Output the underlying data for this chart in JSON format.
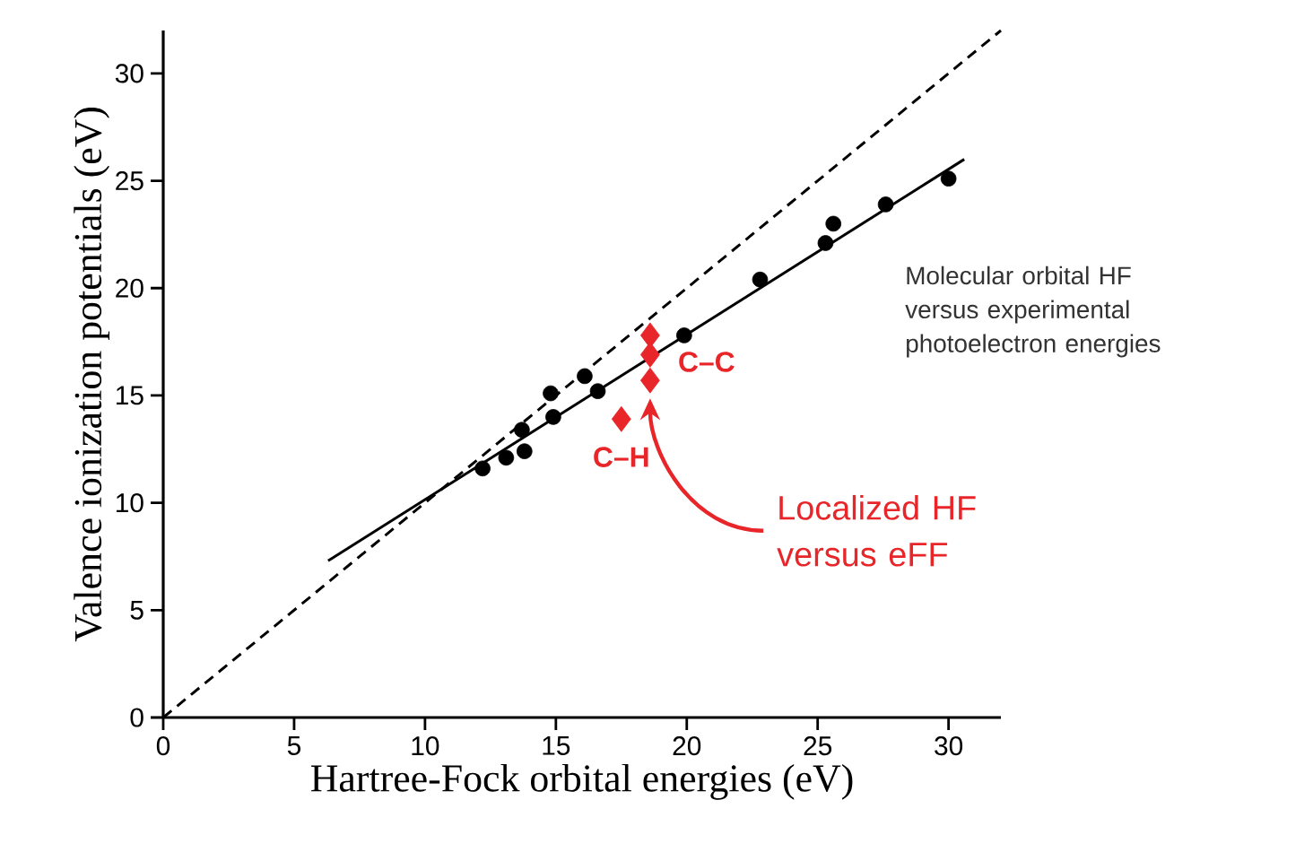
{
  "chart_data": {
    "type": "scatter",
    "xlabel": "Hartree-Fock orbital energies (eV)",
    "ylabel": "Valence ionization potentials (eV)",
    "xlim": [
      0,
      32
    ],
    "ylim": [
      0,
      32
    ],
    "xticks": [
      0,
      5,
      10,
      15,
      20,
      25,
      30
    ],
    "yticks": [
      0,
      5,
      10,
      15,
      20,
      25,
      30
    ],
    "series": [
      {
        "name": "Molecular orbital HF versus experimental photoelectron energies",
        "type": "scatter",
        "marker": "circle",
        "color": "#000000",
        "x": [
          12.2,
          13.1,
          13.7,
          13.8,
          14.8,
          14.9,
          16.1,
          16.6,
          19.9,
          22.8,
          25.3,
          25.6,
          27.6,
          30.0
        ],
        "values": [
          11.6,
          12.1,
          13.4,
          12.4,
          15.1,
          14.0,
          15.9,
          15.2,
          17.8,
          20.4,
          22.1,
          23.0,
          23.9,
          25.1
        ]
      },
      {
        "name": "Localized HF versus eFF",
        "type": "scatter",
        "marker": "diamond",
        "color": "#e8262a",
        "x": [
          18.6,
          18.6,
          18.6,
          17.5
        ],
        "values": [
          17.8,
          16.9,
          15.7,
          13.9
        ]
      },
      {
        "type": "line",
        "line_style": "solid",
        "color": "#000000",
        "x": [
          6.3,
          30.6
        ],
        "values": [
          7.3,
          26.0
        ]
      },
      {
        "type": "line",
        "line_style": "dashed",
        "color": "#000000",
        "x": [
          0,
          32
        ],
        "values": [
          0,
          32
        ]
      }
    ],
    "annotations": [
      {
        "text": "C–C",
        "x": 18.6,
        "y": 16.9
      },
      {
        "text": "C–H",
        "x": 17.5,
        "y": 13.9
      }
    ]
  }
}
